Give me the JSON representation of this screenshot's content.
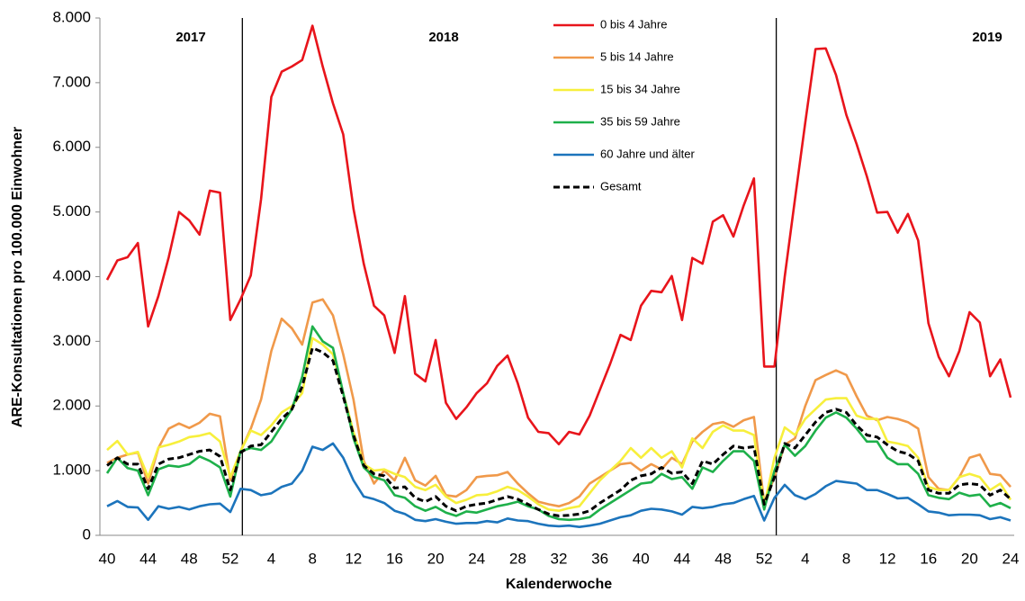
{
  "chart_data": {
    "type": "line",
    "x_label": "Kalenderwoche",
    "y_label": "ARE-Konsultationen pro 100.000 Einwohner",
    "year_labels": [
      "2017",
      "2018",
      "2019"
    ],
    "categories": [
      "40",
      null,
      null,
      null,
      "44",
      null,
      null,
      null,
      "48",
      null,
      null,
      null,
      "52",
      null,
      null,
      null,
      "4",
      null,
      null,
      null,
      "8",
      null,
      null,
      null,
      "12",
      null,
      null,
      null,
      "16",
      null,
      null,
      null,
      "20",
      null,
      null,
      null,
      "24",
      null,
      null,
      null,
      "28",
      null,
      null,
      null,
      "32",
      null,
      null,
      null,
      "36",
      null,
      null,
      null,
      "40",
      null,
      null,
      null,
      "44",
      null,
      null,
      null,
      "48",
      null,
      null,
      null,
      "52",
      null,
      null,
      null,
      "4",
      null,
      null,
      null,
      "8",
      null,
      null,
      null,
      "12",
      null,
      null,
      null,
      "16",
      null,
      null,
      null,
      "20",
      null,
      null,
      null,
      "24"
    ],
    "ylim": [
      0,
      8000
    ],
    "yticks": [
      0,
      {
        "value": 1000,
        "label": "1.000"
      },
      {
        "value": 2000,
        "label": "2.000"
      },
      {
        "value": 3000,
        "label": "3.000"
      },
      {
        "value": 4000,
        "label": "4.000"
      },
      {
        "value": 5000,
        "label": "5.000"
      },
      {
        "value": 6000,
        "label": "6.000"
      },
      {
        "value": 7000,
        "label": "7.000"
      },
      {
        "value": 8000,
        "label": "8.000"
      }
    ],
    "grid": false,
    "legend": "top",
    "series": [
      {
        "name": "0 bis 4 Jahre",
        "color": "#e8141b",
        "dash": false,
        "values": [
          3950,
          4250,
          4300,
          4520,
          3230,
          3700,
          4300,
          5000,
          4870,
          4650,
          5330,
          5300,
          3330,
          3650,
          4020,
          5200,
          6780,
          7170,
          7250,
          7350,
          7880,
          7250,
          6680,
          6200,
          5050,
          4200,
          3550,
          3400,
          2820,
          3700,
          2500,
          2380,
          3020,
          2050,
          1800,
          1980,
          2200,
          2350,
          2620,
          2780,
          2350,
          1820,
          1600,
          1580,
          1410,
          1600,
          1560,
          1850,
          2250,
          2650,
          3100,
          3020,
          3550,
          3780,
          3760,
          4010,
          3330,
          4290,
          4200,
          4850,
          4950,
          4620,
          5100,
          5520,
          2610,
          2610,
          4000,
          5200,
          6380,
          7520,
          7530,
          7120,
          6500,
          6050,
          5550,
          4990,
          5000,
          4680,
          4970,
          4560,
          3280,
          2760,
          2460,
          2850,
          3450,
          3290,
          2460,
          2720,
          2130
        ]
      },
      {
        "name": "5 bis 14 Jahre",
        "color": "#f0994a",
        "dash": false,
        "values": [
          1120,
          1200,
          1250,
          1280,
          800,
          1350,
          1650,
          1730,
          1660,
          1740,
          1880,
          1840,
          850,
          1300,
          1650,
          2100,
          2850,
          3350,
          3200,
          2950,
          3600,
          3650,
          3400,
          2800,
          2100,
          1150,
          800,
          1000,
          850,
          1200,
          850,
          770,
          920,
          620,
          600,
          700,
          900,
          920,
          930,
          980,
          800,
          650,
          520,
          480,
          450,
          500,
          600,
          800,
          900,
          1000,
          1100,
          1120,
          1000,
          1100,
          1020,
          1200,
          1100,
          1450,
          1600,
          1720,
          1750,
          1680,
          1780,
          1830,
          500,
          900,
          1400,
          1500,
          2000,
          2400,
          2480,
          2550,
          2480,
          2150,
          1850,
          1780,
          1830,
          1800,
          1750,
          1650,
          900,
          720,
          700,
          900,
          1200,
          1250,
          950,
          930,
          750
        ]
      },
      {
        "name": "15 bis 34 Jahre",
        "color": "#f7ef3c",
        "dash": false,
        "values": [
          1320,
          1460,
          1250,
          1290,
          900,
          1360,
          1400,
          1450,
          1520,
          1540,
          1580,
          1450,
          900,
          1300,
          1620,
          1550,
          1700,
          1900,
          2000,
          2200,
          3050,
          2950,
          2800,
          2200,
          1600,
          1100,
          1000,
          1020,
          950,
          900,
          750,
          700,
          780,
          600,
          500,
          550,
          620,
          630,
          680,
          750,
          700,
          600,
          480,
          400,
          380,
          420,
          450,
          650,
          850,
          1000,
          1150,
          1350,
          1200,
          1350,
          1200,
          1300,
          1050,
          1500,
          1350,
          1600,
          1700,
          1620,
          1620,
          1550,
          450,
          1200,
          1670,
          1550,
          1800,
          1950,
          2100,
          2120,
          2120,
          1850,
          1800,
          1800,
          1450,
          1420,
          1380,
          1200,
          750,
          700,
          700,
          900,
          950,
          900,
          700,
          800,
          550
        ]
      },
      {
        "name": "35 bis 59 Jahre",
        "color": "#1eb04a",
        "dash": false,
        "values": [
          960,
          1200,
          1040,
          1000,
          620,
          1020,
          1080,
          1060,
          1100,
          1220,
          1150,
          1050,
          600,
          1300,
          1350,
          1320,
          1450,
          1700,
          1950,
          2450,
          3230,
          3000,
          2900,
          2200,
          1500,
          1050,
          900,
          850,
          620,
          580,
          450,
          380,
          440,
          350,
          300,
          370,
          350,
          400,
          450,
          480,
          520,
          450,
          400,
          300,
          250,
          240,
          250,
          280,
          400,
          500,
          600,
          700,
          800,
          820,
          950,
          870,
          900,
          720,
          1050,
          980,
          1150,
          1300,
          1300,
          1150,
          400,
          1000,
          1400,
          1230,
          1380,
          1620,
          1820,
          1900,
          1820,
          1650,
          1450,
          1450,
          1200,
          1100,
          1100,
          950,
          620,
          580,
          560,
          660,
          610,
          630,
          450,
          500,
          420
        ]
      },
      {
        "name": "60 Jahre und älter",
        "color": "#1c74bc",
        "dash": false,
        "values": [
          450,
          530,
          440,
          430,
          240,
          450,
          410,
          440,
          400,
          450,
          480,
          490,
          360,
          720,
          700,
          620,
          650,
          750,
          800,
          1000,
          1370,
          1320,
          1420,
          1200,
          850,
          600,
          560,
          500,
          380,
          330,
          240,
          220,
          250,
          210,
          180,
          190,
          190,
          220,
          200,
          260,
          230,
          220,
          180,
          150,
          140,
          150,
          130,
          150,
          180,
          230,
          280,
          310,
          380,
          410,
          400,
          370,
          320,
          440,
          420,
          440,
          480,
          500,
          560,
          610,
          230,
          580,
          780,
          620,
          560,
          640,
          760,
          840,
          820,
          800,
          700,
          700,
          640,
          570,
          580,
          480,
          370,
          350,
          310,
          320,
          320,
          310,
          250,
          280,
          230
        ]
      },
      {
        "name": "Gesamt",
        "color": "#000000",
        "dash": true,
        "values": [
          1080,
          1200,
          1100,
          1100,
          720,
          1100,
          1180,
          1200,
          1250,
          1300,
          1320,
          1220,
          700,
          1280,
          1380,
          1400,
          1600,
          1800,
          1950,
          2300,
          2900,
          2830,
          2700,
          2150,
          1550,
          1080,
          950,
          920,
          730,
          750,
          580,
          520,
          600,
          450,
          380,
          450,
          480,
          500,
          550,
          600,
          560,
          480,
          400,
          330,
          300,
          310,
          330,
          380,
          500,
          600,
          700,
          850,
          920,
          950,
          1050,
          960,
          980,
          800,
          1150,
          1100,
          1250,
          1380,
          1350,
          1370,
          480,
          900,
          1420,
          1350,
          1550,
          1750,
          1900,
          1950,
          1900,
          1700,
          1550,
          1520,
          1400,
          1300,
          1260,
          1150,
          700,
          650,
          650,
          780,
          800,
          780,
          620,
          700,
          560
        ]
      }
    ]
  }
}
